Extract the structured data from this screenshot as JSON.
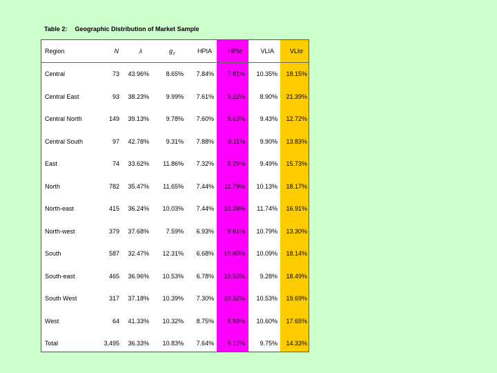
{
  "caption": {
    "number": "Table 2:",
    "title": "Geographic Distribution of Market Sample"
  },
  "table": {
    "headers": {
      "region": "Region",
      "n": "N",
      "lambda": "λ",
      "g": "g",
      "g_sub": "Y",
      "hpia": "HPIA",
      "hpis": "HPIσ",
      "vlia": "VLIA",
      "vlis": "VLIσ"
    },
    "rows": [
      {
        "region": "Central",
        "n": "73",
        "lambda": "43.96%",
        "g": "8.65%",
        "hpia": "7.84%",
        "hpis": "7.81%",
        "vlia": "10.35%",
        "vlis": "18.15%"
      },
      {
        "region": "Central East",
        "n": "93",
        "lambda": "38.23%",
        "g": "9.99%",
        "hpia": "7.61%",
        "hpis": "9.22%",
        "vlia": "8.90%",
        "vlis": "21.39%"
      },
      {
        "region": "Central North",
        "n": "149",
        "lambda": "39.13%",
        "g": "9.78%",
        "hpia": "7.60%",
        "hpis": "9.63%",
        "vlia": "9.43%",
        "vlis": "12.72%"
      },
      {
        "region": "Central South",
        "n": "97",
        "lambda": "42.78%",
        "g": "9.31%",
        "hpia": "7.88%",
        "hpis": "8.11%",
        "vlia": "9.90%",
        "vlis": "13.83%"
      },
      {
        "region": "East",
        "n": "74",
        "lambda": "33.62%",
        "g": "11.86%",
        "hpia": "7.32%",
        "hpis": "9.29%",
        "vlia": "9.49%",
        "vlis": "15.73%"
      },
      {
        "region": "North",
        "n": "782",
        "lambda": "35.47%",
        "g": "11.65%",
        "hpia": "7.44%",
        "hpis": "11.79%",
        "vlia": "10.13%",
        "vlis": "18.17%"
      },
      {
        "region": "North-east",
        "n": "415",
        "lambda": "36.24%",
        "g": "10.03%",
        "hpia": "7.44%",
        "hpis": "10.39%",
        "vlia": "11.74%",
        "vlis": "16.91%"
      },
      {
        "region": "North-west",
        "n": "379",
        "lambda": "37.68%",
        "g": "7.59%",
        "hpia": "6.93%",
        "hpis": "8.61%",
        "vlia": "10.79%",
        "vlis": "13.30%"
      },
      {
        "region": "South",
        "n": "587",
        "lambda": "32.47%",
        "g": "12.31%",
        "hpia": "6.68%",
        "hpis": "10.60%",
        "vlia": "10.09%",
        "vlis": "18.14%"
      },
      {
        "region": "South-east",
        "n": "465",
        "lambda": "36.96%",
        "g": "10.53%",
        "hpia": "6.78%",
        "hpis": "10.53%",
        "vlia": "9.28%",
        "vlis": "18.49%"
      },
      {
        "region": "South West",
        "n": "317",
        "lambda": "37.18%",
        "g": "10.39%",
        "hpia": "7.30%",
        "hpis": "10.32%",
        "vlia": "10.53%",
        "vlis": "19.69%"
      },
      {
        "region": "West",
        "n": "64",
        "lambda": "41.33%",
        "g": "10.32%",
        "hpia": "8.75%",
        "hpis": "8.93%",
        "vlia": "10.60%",
        "vlis": "17.65%"
      },
      {
        "region": "Total",
        "n": "3,495",
        "lambda": "36.33%",
        "g": "10.83%",
        "hpia": "7.64%",
        "hpis": "9.12%",
        "vlia": "9.75%",
        "vlis": "14.33%"
      }
    ]
  },
  "colors": {
    "background": "#ccffcc",
    "hpis_highlight": "#ff00ff",
    "vlis_highlight": "#ffcc00"
  }
}
